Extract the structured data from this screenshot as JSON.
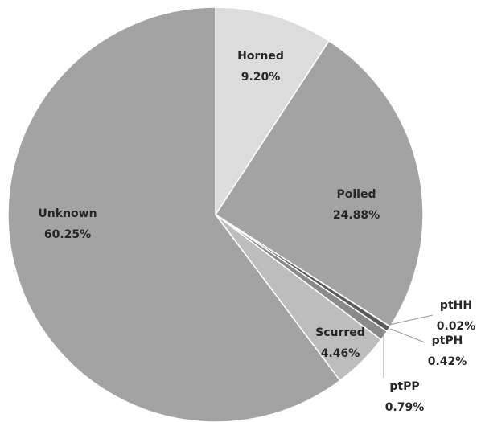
{
  "chart_data": {
    "type": "pie",
    "categories": [
      "Horned",
      "Polled",
      "ptHH",
      "ptPH",
      "ptPP",
      "Scurred",
      "Unknown"
    ],
    "values": [
      9.2,
      24.88,
      0.02,
      0.42,
      0.79,
      4.46,
      60.25
    ],
    "value_labels": [
      "9.20%",
      "24.88%",
      "0.02%",
      "0.42%",
      "0.79%",
      "4.46%",
      "60.25%"
    ],
    "colors": [
      "#dcdcdc",
      "#a3a3a3",
      "#c8c8c8",
      "#5a5a5a",
      "#8a8a8a",
      "#bdbdbd",
      "#a3a3a3"
    ]
  }
}
